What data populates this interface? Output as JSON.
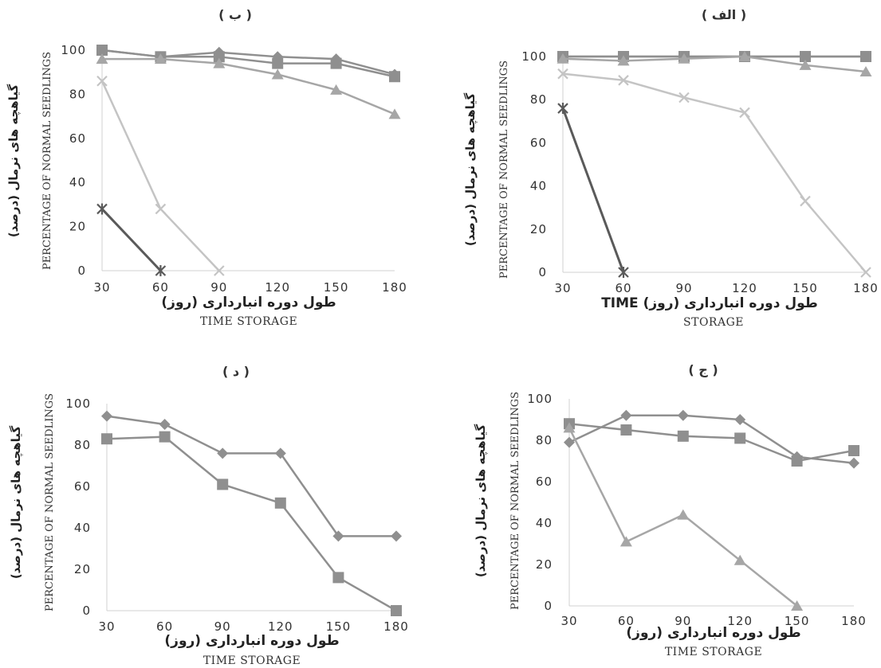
{
  "chart_data": [
    {
      "type": "line",
      "title": "( ب )",
      "xlabel_fa": "طول دوره انبارداری (روز)",
      "xlabel_en": "TIME STORAGE",
      "ylabel_fa": "گیاهچه های نرمال (درصد)",
      "ylabel_en": "PERCENTAGE OF NORMAL SEEDLINGS",
      "categories": [
        "30",
        "60",
        "90",
        "120",
        "150",
        "180"
      ],
      "ylim": [
        0,
        100
      ],
      "yticks": [
        "0",
        "20",
        "40",
        "60",
        "80",
        "100"
      ],
      "grid": false,
      "series": [
        {
          "marker": "diamond",
          "color": "#8f8f8f",
          "values": [
            100,
            97,
            99,
            97,
            96,
            89
          ]
        },
        {
          "marker": "square",
          "color": "#8f8f8f",
          "values": [
            100,
            97,
            97,
            94,
            94,
            88
          ]
        },
        {
          "marker": "triangle",
          "color": "#a6a6a6",
          "values": [
            96,
            96,
            94,
            89,
            82,
            71
          ]
        },
        {
          "marker": "x",
          "color": "#c4c4c4",
          "values": [
            86,
            28,
            0,
            null,
            null,
            null
          ]
        },
        {
          "marker": "star",
          "color": "#5a5a5a",
          "values": [
            28,
            0,
            null,
            null,
            null,
            null
          ]
        }
      ]
    },
    {
      "type": "line",
      "title": "( الف )",
      "xlabel_fa": "TIME (طول دوره انبارداری (روز",
      "xlabel_en": "STORAGE",
      "ylabel_fa": "گیاهچه های نرمال (درصد)",
      "ylabel_en": "PERCENTAGE OF NORMAL SEEDLINGS",
      "categories": [
        "30",
        "60",
        "90",
        "120",
        "150",
        "180"
      ],
      "ylim": [
        0,
        100
      ],
      "yticks": [
        "0",
        "20",
        "40",
        "60",
        "80",
        "100"
      ],
      "grid": false,
      "series": [
        {
          "marker": "diamond",
          "color": "#8f8f8f",
          "values": [
            100,
            100,
            100,
            100,
            100,
            100
          ]
        },
        {
          "marker": "square",
          "color": "#8f8f8f",
          "values": [
            100,
            100,
            100,
            100,
            100,
            100
          ]
        },
        {
          "marker": "triangle",
          "color": "#a6a6a6",
          "values": [
            99,
            98,
            99,
            100,
            96,
            93
          ]
        },
        {
          "marker": "x",
          "color": "#c4c4c4",
          "values": [
            92,
            89,
            81,
            74,
            33,
            0
          ]
        },
        {
          "marker": "star",
          "color": "#5a5a5a",
          "values": [
            76,
            0,
            null,
            null,
            null,
            null
          ]
        }
      ]
    },
    {
      "type": "line",
      "title": "( د )",
      "xlabel_fa": "طول دوره انبارداری (روز)",
      "xlabel_en": "TIME STORAGE",
      "ylabel_fa": "گیاهچه های نرمال (درصد)",
      "ylabel_en": "PERCENTAGE OF NORMAL SEEDLINGS",
      "categories": [
        "30",
        "60",
        "90",
        "120",
        "150",
        "180"
      ],
      "ylim": [
        0,
        100
      ],
      "yticks": [
        "0",
        "20",
        "40",
        "60",
        "80",
        "100"
      ],
      "grid": false,
      "series": [
        {
          "marker": "diamond",
          "color": "#8f8f8f",
          "values": [
            94,
            90,
            76,
            76,
            36,
            36
          ]
        },
        {
          "marker": "square",
          "color": "#8f8f8f",
          "values": [
            83,
            84,
            61,
            52,
            16,
            0
          ]
        }
      ]
    },
    {
      "type": "line",
      "title": "( ج )",
      "xlabel_fa": "طول دوره انبارداری (روز)",
      "xlabel_en": "TIME STORAGE",
      "ylabel_fa": "گیاهچه های نرمال (درصد)",
      "ylabel_en": "PERCENTAGE OF NORMAL SEEDLINGS",
      "categories": [
        "30",
        "60",
        "90",
        "120",
        "150",
        "180"
      ],
      "ylim": [
        0,
        100
      ],
      "yticks": [
        "0",
        "20",
        "40",
        "60",
        "80",
        "100"
      ],
      "grid": false,
      "series": [
        {
          "marker": "diamond",
          "color": "#8f8f8f",
          "values": [
            79,
            92,
            92,
            90,
            72,
            69
          ]
        },
        {
          "marker": "square",
          "color": "#8f8f8f",
          "values": [
            88,
            85,
            82,
            81,
            70,
            75
          ]
        },
        {
          "marker": "triangle",
          "color": "#a6a6a6",
          "values": [
            86,
            31,
            44,
            22,
            0,
            null
          ]
        }
      ]
    }
  ]
}
